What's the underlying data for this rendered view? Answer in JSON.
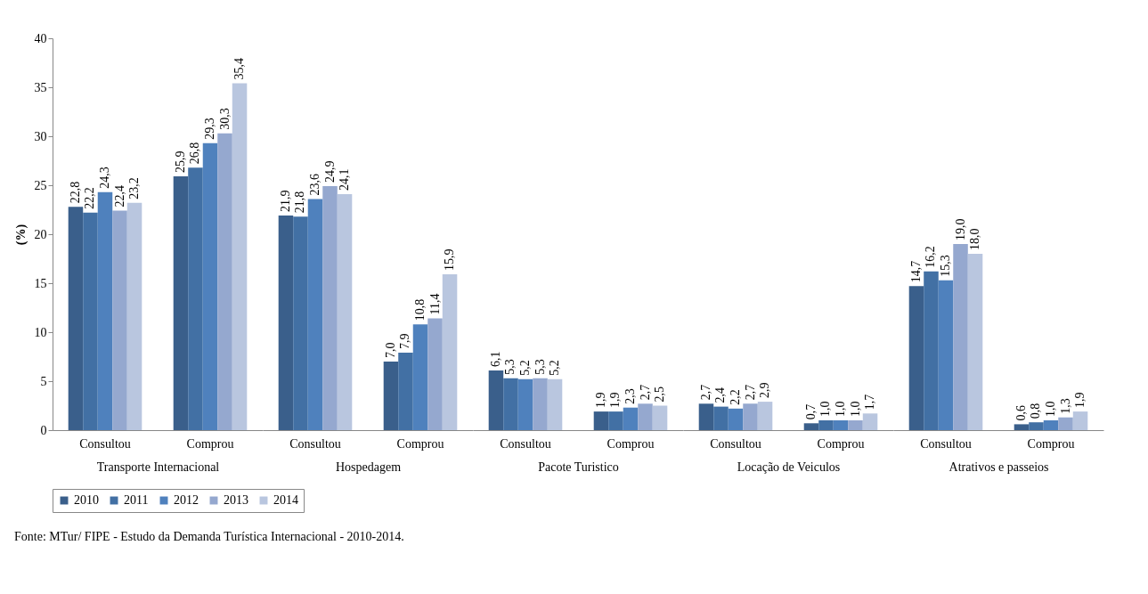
{
  "chart_data": [
    {
      "type": "bar",
      "xlabel": "Transporte Internacional",
      "ylabel": "(%)",
      "categories": [
        "Consultou",
        "Comprou"
      ],
      "ylim": [
        0,
        40
      ],
      "yticks": [
        0,
        5,
        10,
        15,
        20,
        25,
        30,
        35,
        40
      ],
      "legend": "bottom",
      "annotations": [
        "Fonte: MTur/ FIPE - Estudo da Demanda Turística Internacional - 2010-2014."
      ],
      "series": [
        {
          "name": "2010",
          "color": "#3a5f8b",
          "values": [
            22.8,
            25.9
          ],
          "value_labels": [
            "22,8",
            "25,9"
          ]
        },
        {
          "name": "2011",
          "color": "#4270a4",
          "values": [
            22.2,
            26.8
          ],
          "value_labels": [
            "22,2",
            "26,8"
          ]
        },
        {
          "name": "2012",
          "color": "#4f81bd",
          "values": [
            24.3,
            29.3
          ],
          "value_labels": [
            "24,3",
            "29,3"
          ]
        },
        {
          "name": "2013",
          "color": "#95a8cf",
          "values": [
            22.4,
            30.3
          ],
          "value_labels": [
            "22,4",
            "30,3"
          ]
        },
        {
          "name": "2014",
          "color": "#b9c6df",
          "values": [
            23.2,
            35.4
          ],
          "value_labels": [
            "23,2",
            "35,4"
          ]
        }
      ]
    },
    {
      "type": "bar",
      "xlabel": "Hospedagem",
      "categories": [
        "Consultou",
        "Comprou"
      ],
      "ylim": [
        0,
        40
      ],
      "tick_labels": "x",
      "legend": "bottom",
      "series": [
        {
          "name": "2010",
          "color": "#3a5f8b",
          "values": [
            21.9,
            7.0
          ],
          "value_labels": [
            "21,9",
            "7,0"
          ]
        },
        {
          "name": "2011",
          "color": "#4270a4",
          "values": [
            21.8,
            7.9
          ],
          "value_labels": [
            "21,8",
            "7,9"
          ]
        },
        {
          "name": "2012",
          "color": "#4f81bd",
          "values": [
            23.6,
            10.8
          ],
          "value_labels": [
            "23,6",
            "10,8"
          ]
        },
        {
          "name": "2013",
          "color": "#95a8cf",
          "values": [
            24.9,
            11.4
          ],
          "value_labels": [
            "24,9",
            "11,4"
          ]
        },
        {
          "name": "2014",
          "color": "#b9c6df",
          "values": [
            24.1,
            15.9
          ],
          "value_labels": [
            "24,1",
            "15,9"
          ]
        }
      ]
    },
    {
      "type": "bar",
      "xlabel": "Pacote Turistico",
      "categories": [
        "Consultou",
        "Comprou"
      ],
      "ylim": [
        0,
        40
      ],
      "tick_labels": "x",
      "legend": "bottom",
      "series": [
        {
          "name": "2010",
          "color": "#3a5f8b",
          "values": [
            6.1,
            1.9
          ],
          "value_labels": [
            "6,1",
            "1,9"
          ]
        },
        {
          "name": "2011",
          "color": "#4270a4",
          "values": [
            5.3,
            1.9
          ],
          "value_labels": [
            "5,3",
            "1,9"
          ]
        },
        {
          "name": "2012",
          "color": "#4f81bd",
          "values": [
            5.2,
            2.3
          ],
          "value_labels": [
            "5,2",
            "2,3"
          ]
        },
        {
          "name": "2013",
          "color": "#95a8cf",
          "values": [
            5.3,
            2.7
          ],
          "value_labels": [
            "5,3",
            "2,7"
          ]
        },
        {
          "name": "2014",
          "color": "#b9c6df",
          "values": [
            5.2,
            2.5
          ],
          "value_labels": [
            "5,2",
            "2,5"
          ]
        }
      ]
    },
    {
      "type": "bar",
      "xlabel": "Locação de Veiculos",
      "categories": [
        "Consultou",
        "Comprou"
      ],
      "ylim": [
        0,
        40
      ],
      "tick_labels": "x",
      "legend": "bottom",
      "series": [
        {
          "name": "2010",
          "color": "#3a5f8b",
          "values": [
            2.7,
            0.7
          ],
          "value_labels": [
            "2,7",
            "0,7"
          ]
        },
        {
          "name": "2011",
          "color": "#4270a4",
          "values": [
            2.4,
            1.0
          ],
          "value_labels": [
            "2,4",
            "1,0"
          ]
        },
        {
          "name": "2012",
          "color": "#4f81bd",
          "values": [
            2.2,
            1.0
          ],
          "value_labels": [
            "2,2",
            "1,0"
          ]
        },
        {
          "name": "2013",
          "color": "#95a8cf",
          "values": [
            2.7,
            1.0
          ],
          "value_labels": [
            "2,7",
            "1,0"
          ]
        },
        {
          "name": "2014",
          "color": "#b9c6df",
          "values": [
            2.9,
            1.7
          ],
          "value_labels": [
            "2,9",
            "1,7"
          ]
        }
      ]
    },
    {
      "type": "bar",
      "xlabel": "Atrativos e passeios",
      "categories": [
        "Consultou",
        "Comprou"
      ],
      "ylim": [
        0,
        40
      ],
      "tick_labels": "x",
      "legend": "bottom",
      "series": [
        {
          "name": "2010",
          "color": "#3a5f8b",
          "values": [
            14.7,
            0.6
          ],
          "value_labels": [
            "14,7",
            "0,6"
          ]
        },
        {
          "name": "2011",
          "color": "#4270a4",
          "values": [
            16.2,
            0.8
          ],
          "value_labels": [
            "16,2",
            "0,8"
          ]
        },
        {
          "name": "2012",
          "color": "#4f81bd",
          "values": [
            15.3,
            1.0
          ],
          "value_labels": [
            "15,3",
            "1,0"
          ]
        },
        {
          "name": "2013",
          "color": "#95a8cf",
          "values": [
            19.0,
            1.3
          ],
          "value_labels": [
            "19,0",
            "1,3"
          ]
        },
        {
          "name": "2014",
          "color": "#b9c6df",
          "values": [
            18.0,
            1.9
          ],
          "value_labels": [
            "18,0",
            "1,9"
          ]
        }
      ]
    }
  ]
}
